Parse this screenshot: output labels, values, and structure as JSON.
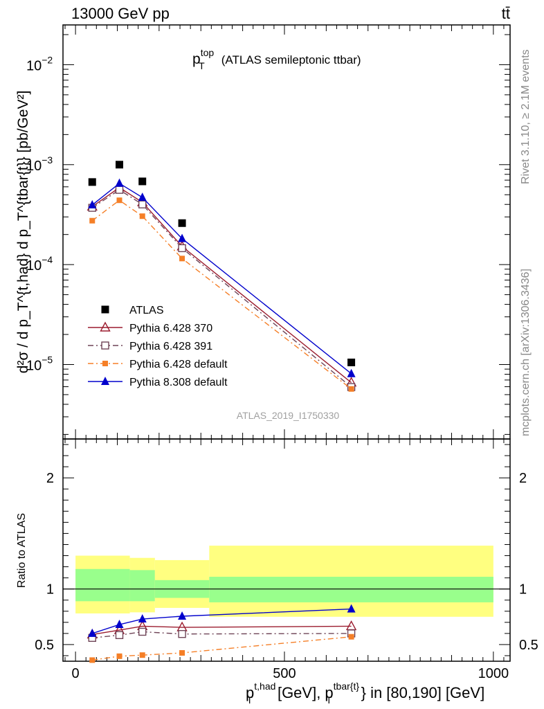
{
  "header": {
    "energy_label": "13000 GeV pp",
    "process_label": "tt̄"
  },
  "side_labels": {
    "rivet": "Rivet 3.1.10, ≥ 2.1M events",
    "mcplots": "mcplots.cern.ch [arXiv:1306.3436]"
  },
  "chart_data": {
    "type": "line",
    "title": {
      "main": "p",
      "sup": "top",
      "sub": "T",
      "suffix": "(ATLAS semileptonic ttbar)"
    },
    "watermark": "ATLAS_2019_I1750330",
    "x": [
      40,
      105,
      160,
      255,
      660
    ],
    "xlim": [
      -30,
      1040
    ],
    "xticks": [
      0,
      500,
      1000
    ],
    "xlabel": {
      "p1": "p",
      "sup1": "t,had",
      "sub1": "T",
      "p2": "[GeV], p",
      "sup2": "tbar{t}",
      "sub2": "T",
      "tail": "} in [80,190] [GeV]"
    },
    "main_panel": {
      "yscale": "log",
      "ylim": [
        1.8e-06,
        0.025
      ],
      "ylabel": "d²σ / d p_T^{t,had} d p_T^{tbar{t}} [pb/GeV²]",
      "yticks": [
        {
          "value": 1e-05,
          "base": "10",
          "exp": "−5"
        },
        {
          "value": 0.0001,
          "base": "10",
          "exp": "−4"
        },
        {
          "value": 0.001,
          "base": "10",
          "exp": "−3"
        },
        {
          "value": 0.01,
          "base": "10",
          "exp": "−2"
        }
      ],
      "series": [
        {
          "name": "ATLAS",
          "color": "#000000",
          "marker": "square-filled",
          "line": "none",
          "values": [
            0.00067,
            0.001,
            0.00068,
            0.00026,
            1.05e-05
          ]
        },
        {
          "name": "Pythia 6.428 370",
          "color": "#9b1c2e",
          "marker": "triangle-open",
          "line": "solid",
          "values": [
            0.00038,
            0.00059,
            0.00042,
            0.000152,
            6.6e-06
          ]
        },
        {
          "name": "Pythia 6.428 391",
          "color": "#6e4356",
          "marker": "square-open",
          "line": "dashdot",
          "values": [
            0.00037,
            0.00056,
            0.0004,
            0.000146,
            5.95e-06
          ]
        },
        {
          "name": "Pythia 6.428 default",
          "color": "#f57f27",
          "marker": "square-filled-small",
          "line": "dashdot",
          "values": [
            0.000275,
            0.00044,
            0.000305,
            0.000115,
            5.7e-06
          ]
        },
        {
          "name": "Pythia 8.308 default",
          "color": "#0000cc",
          "marker": "triangle-filled",
          "line": "solid",
          "values": [
            0.000395,
            0.00065,
            0.00047,
            0.000182,
            8.1e-06
          ]
        }
      ]
    },
    "ratio_panel": {
      "ylabel": "Ratio to ATLAS",
      "ylim": [
        0.35,
        2.35
      ],
      "yticks": [
        0.5,
        1,
        2
      ],
      "ytick_labels": [
        "0.5",
        "1",
        "2"
      ],
      "reference": 1.0,
      "bands": [
        {
          "x_range": [
            0,
            130
          ],
          "green": [
            0.89,
            1.18
          ],
          "yellow": [
            0.78,
            1.3
          ]
        },
        {
          "x_range": [
            130,
            190
          ],
          "green": [
            0.89,
            1.17
          ],
          "yellow": [
            0.79,
            1.28
          ]
        },
        {
          "x_range": [
            190,
            320
          ],
          "green": [
            0.92,
            1.08
          ],
          "yellow": [
            0.83,
            1.26
          ]
        },
        {
          "x_range": [
            320,
            1000
          ],
          "green": [
            0.88,
            1.11
          ],
          "yellow": [
            0.75,
            1.39
          ]
        }
      ],
      "series": [
        {
          "name": "Pythia 6.428 370",
          "values": [
            0.59,
            0.63,
            0.665,
            0.655,
            0.665
          ]
        },
        {
          "name": "Pythia 6.428 391",
          "values": [
            0.56,
            0.585,
            0.615,
            0.595,
            0.6
          ]
        },
        {
          "name": "Pythia 6.428 default",
          "values": [
            0.36,
            0.395,
            0.405,
            0.425,
            0.57
          ]
        },
        {
          "name": "Pythia 8.308 default",
          "values": [
            0.6,
            0.68,
            0.73,
            0.755,
            0.82
          ]
        }
      ]
    }
  }
}
